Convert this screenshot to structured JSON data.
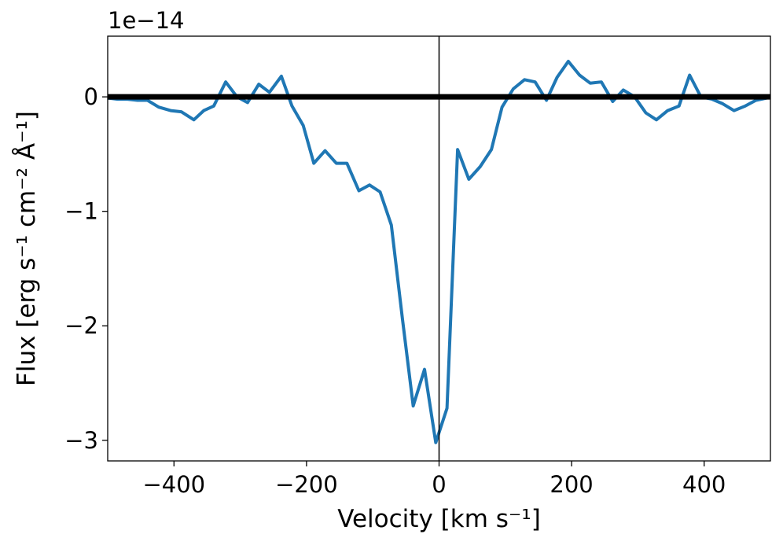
{
  "chart_data": {
    "type": "line",
    "title": "",
    "xlabel": "Velocity [km s⁻¹]",
    "ylabel": "Flux [erg s⁻¹ cm⁻² Å⁻¹]",
    "y_offset_text": "1e−14",
    "xlim": [
      -500,
      500
    ],
    "ylim": [
      -3.18,
      0.53
    ],
    "x_ticks": [
      -400,
      -200,
      0,
      200,
      400
    ],
    "x_tick_labels": [
      "−400",
      "−200",
      "0",
      "200",
      "400"
    ],
    "y_ticks": [
      0,
      -1,
      -2,
      -3
    ],
    "y_tick_labels": [
      "0",
      "−1",
      "−2",
      "−3"
    ],
    "grid": false,
    "line_color": "#1f77b4",
    "reference_lines": [
      {
        "orientation": "horizontal",
        "value": 0,
        "color": "#000000",
        "weight": "thick"
      },
      {
        "orientation": "vertical",
        "value": 0,
        "color": "#000000",
        "weight": "thin"
      }
    ],
    "series": [
      {
        "x": [
          -500,
          -485,
          -470,
          -455,
          -440,
          -423,
          -405,
          -389,
          -370,
          -355,
          -340,
          -322,
          -305,
          -289,
          -272,
          -256,
          -238,
          -222,
          -205,
          -189,
          -172,
          -155,
          -139,
          -121,
          -105,
          -89,
          -72,
          -55,
          -39,
          -22,
          -5,
          12,
          28,
          45,
          62,
          79,
          95,
          112,
          129,
          145,
          162,
          178,
          195,
          212,
          228,
          245,
          262,
          278,
          295,
          312,
          328,
          345,
          362,
          378,
          395,
          412,
          428,
          445,
          462,
          478,
          495
        ],
        "y": [
          -0.01,
          -0.02,
          -0.02,
          -0.03,
          -0.03,
          -0.09,
          -0.12,
          -0.13,
          -0.2,
          -0.12,
          -0.08,
          0.13,
          0.0,
          -0.05,
          0.11,
          0.04,
          0.18,
          -0.08,
          -0.25,
          -0.58,
          -0.47,
          -0.58,
          -0.58,
          -0.82,
          -0.77,
          -0.83,
          -1.12,
          -1.95,
          -2.7,
          -2.38,
          -3.02,
          -2.72,
          -0.46,
          -0.72,
          -0.61,
          -0.46,
          -0.09,
          0.07,
          0.15,
          0.13,
          -0.03,
          0.17,
          0.31,
          0.19,
          0.12,
          0.13,
          -0.04,
          0.06,
          0.0,
          -0.14,
          -0.2,
          -0.12,
          -0.08,
          0.19,
          0.0,
          -0.02,
          -0.06,
          -0.12,
          -0.08,
          -0.03,
          -0.01
        ]
      }
    ]
  }
}
